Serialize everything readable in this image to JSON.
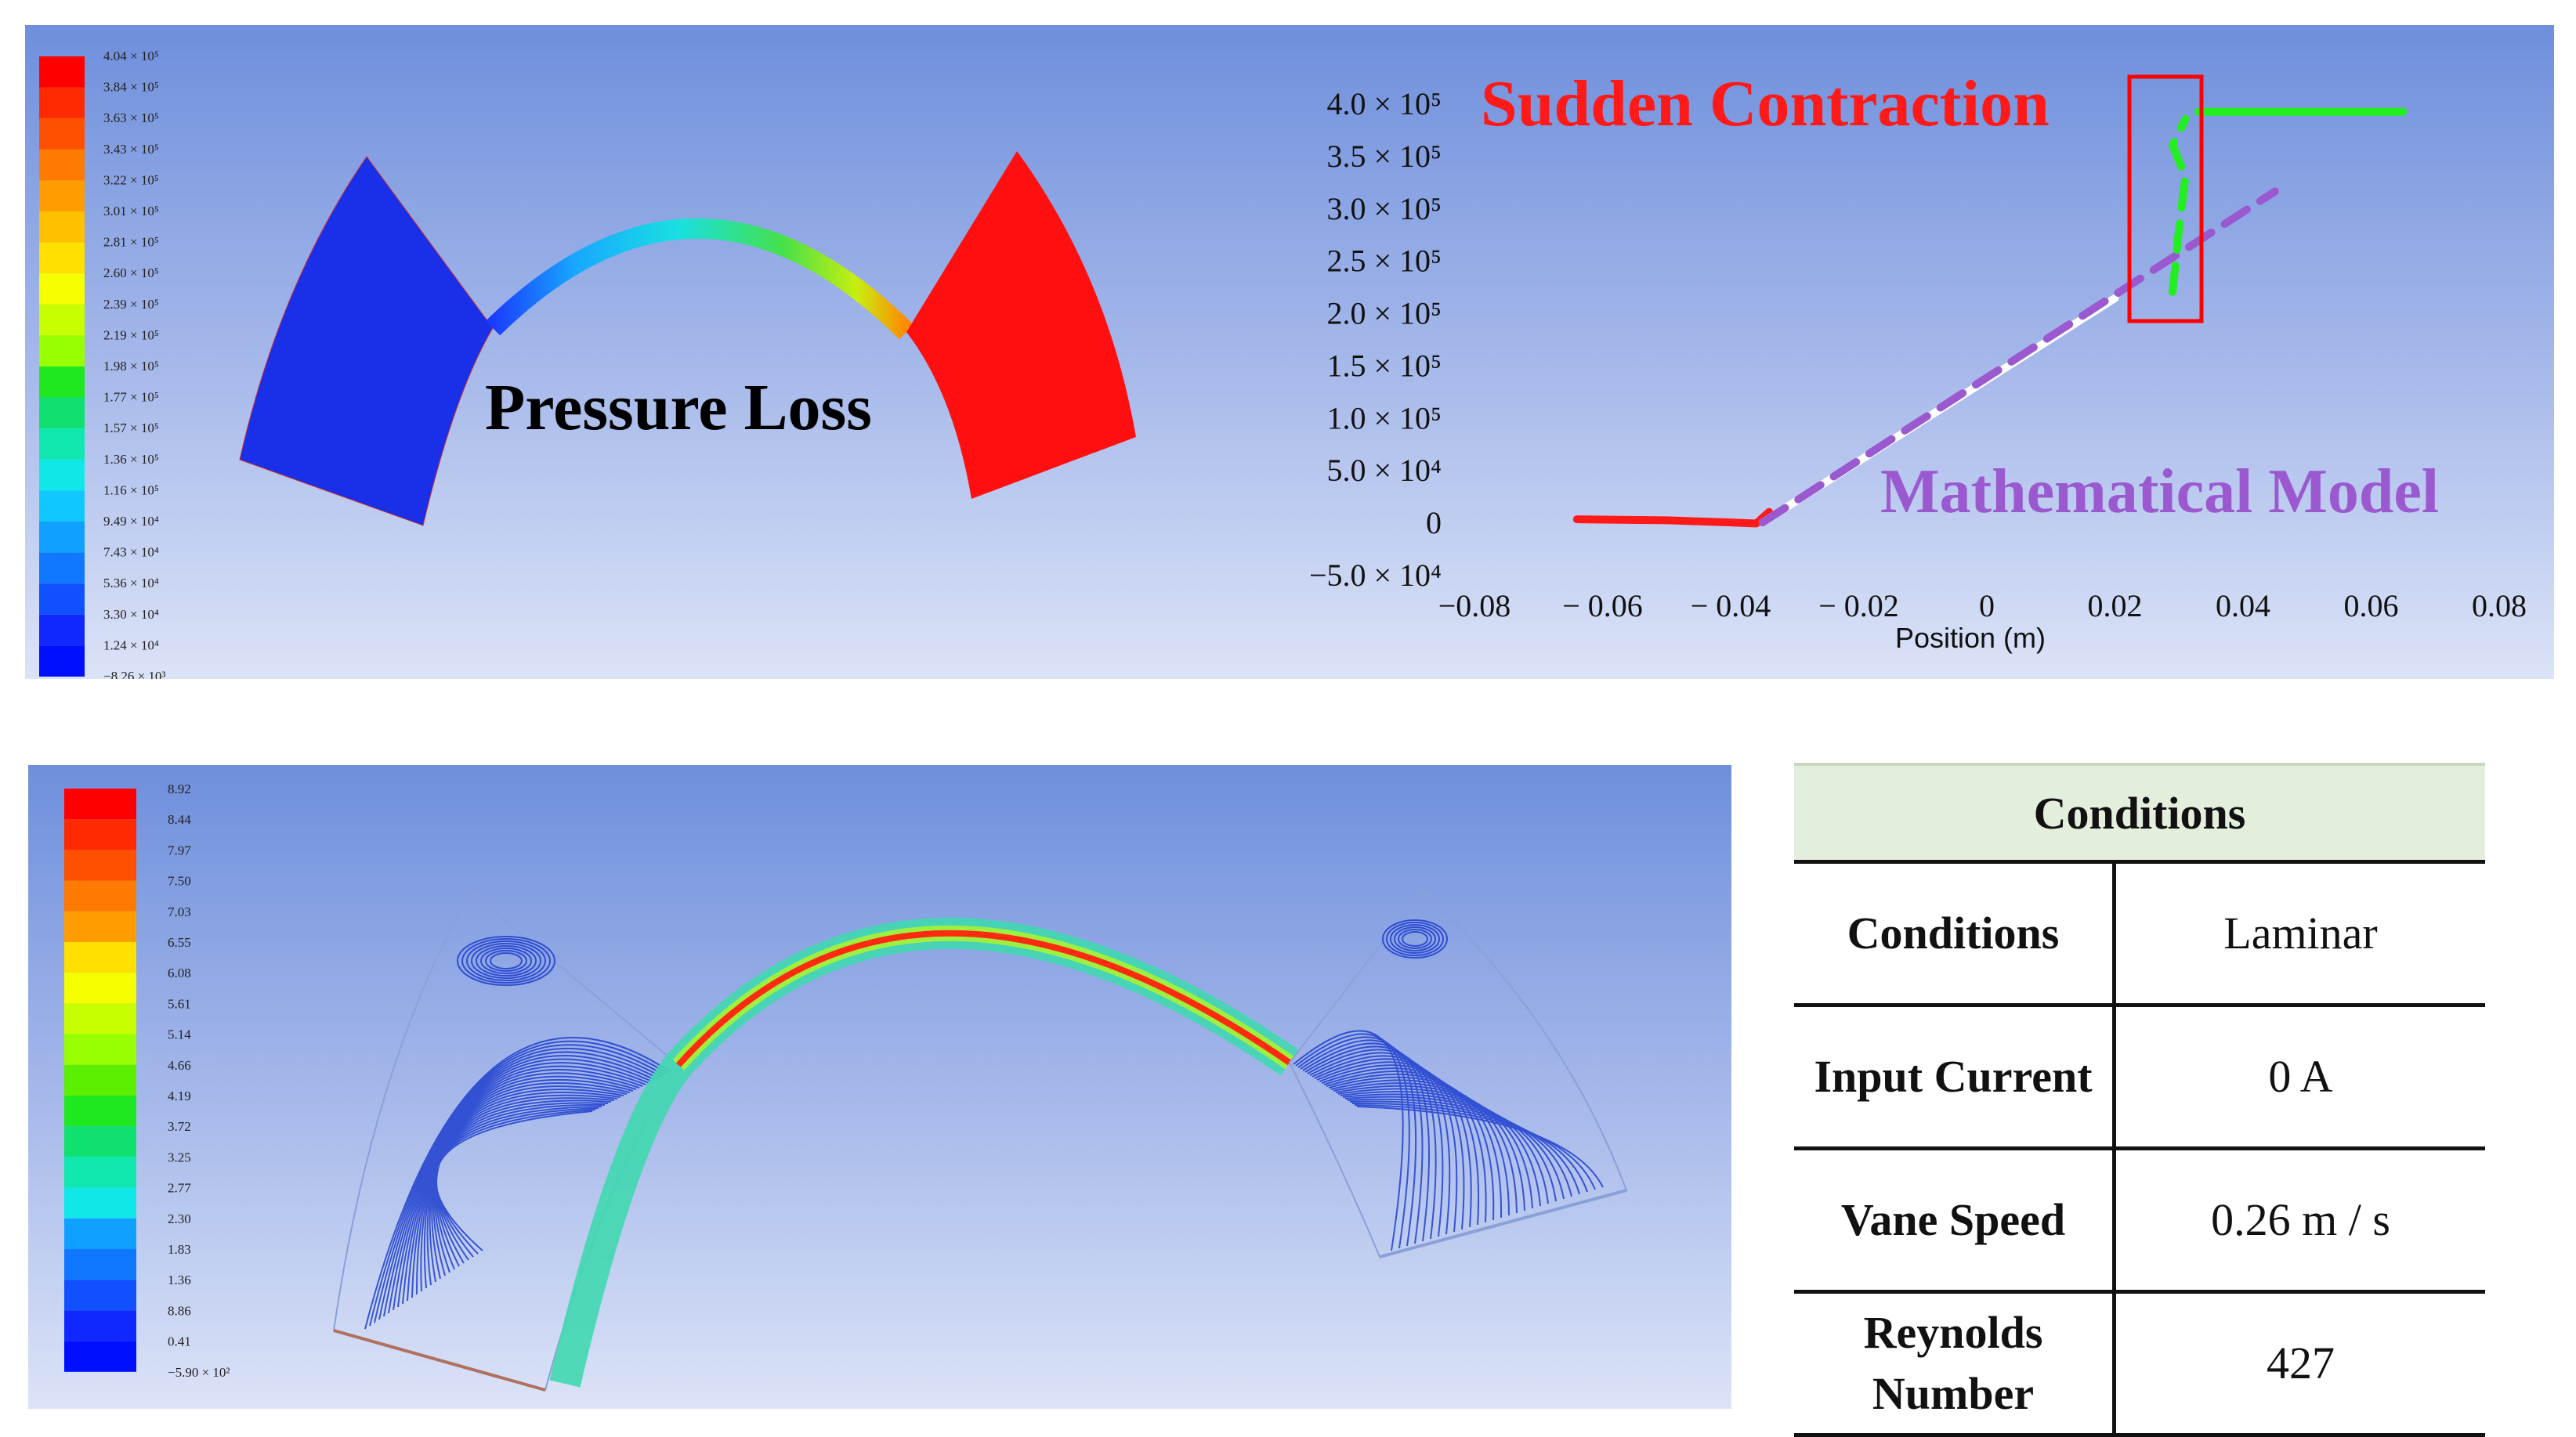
{
  "pressure_panel": {
    "label": "Pressure Loss",
    "legend": [
      "4.04 × 10⁵",
      "3.84 × 10⁵",
      "3.63 × 10⁵",
      "3.43 × 10⁵",
      "3.22 × 10⁵",
      "3.01 × 10⁵",
      "2.81 × 10⁵",
      "2.60 × 10⁵",
      "2.39 × 10⁵",
      "2.19 × 10⁵",
      "1.98 × 10⁵",
      "1.77 × 10⁵",
      "1.57 × 10⁵",
      "1.36 × 10⁵",
      "1.16 × 10⁵",
      "9.49 × 10⁴",
      "7.43 × 10⁴",
      "5.36 × 10⁴",
      "3.30 × 10⁴",
      "1.24 × 10⁴",
      "−8.26 × 10³"
    ]
  },
  "plot_panel": {
    "annotations": {
      "contraction": "Sudden Contraction",
      "model": "Mathematical Model"
    },
    "colors": {
      "simulation": "#ff1a1a",
      "contraction": "#22ee22",
      "model": "#9b59d0",
      "box": "#ff0000"
    }
  },
  "velocity_panel": {
    "legend": [
      "8.92",
      "8.44",
      "7.97",
      "7.50",
      "7.03",
      "6.55",
      "6.08",
      "5.61",
      "5.14",
      "4.66",
      "4.19",
      "3.72",
      "3.25",
      "2.77",
      "2.30",
      "1.83",
      "1.36",
      "8.86",
      "0.41",
      "−5.90 × 10²"
    ]
  },
  "conditions_table": {
    "title": "Conditions",
    "rows": [
      {
        "label": "Conditions",
        "value": "Laminar"
      },
      {
        "label": "Input Current",
        "value": "0 A"
      },
      {
        "label": "Vane Speed",
        "value": "0.26 m / s"
      },
      {
        "label": "Reynolds Number",
        "value": "427"
      }
    ]
  },
  "chart_data": {
    "type": "line",
    "title": "",
    "xlabel": "Position (m)",
    "ylabel": "",
    "xlim": [
      -0.08,
      0.08
    ],
    "ylim": [
      -50000,
      400000
    ],
    "x_ticks": [
      -0.08,
      -0.06,
      -0.04,
      -0.02,
      0,
      0.02,
      0.04,
      0.06,
      0.08
    ],
    "x_tick_labels": [
      "−0.08",
      "− 0.06",
      "− 0.04",
      "− 0.02",
      "0",
      "0.02",
      "0.04",
      "0.06",
      "0.08"
    ],
    "y_ticks": [
      400000,
      350000,
      300000,
      250000,
      200000,
      150000,
      100000,
      50000,
      0,
      -50000
    ],
    "y_tick_labels": [
      "4.0 × 10⁵",
      "3.5 × 10⁵",
      "3.0 × 10⁵",
      "2.5 × 10⁵",
      "2.0 × 10⁵",
      "1.5 × 10⁵",
      "1.0 × 10⁵",
      "5.0 × 10⁴",
      "0",
      "−5.0 × 10⁴"
    ],
    "grid": false,
    "series": [
      {
        "style": "solid",
        "color": "#ff1a1a",
        "x": [
          -0.064,
          -0.05,
          -0.04,
          -0.036,
          -0.034
        ],
        "y": [
          3000,
          2000,
          0,
          -1000,
          10000
        ]
      },
      {
        "style": "solid",
        "color": "#ffffff",
        "x": [
          -0.035,
          0.02
        ],
        "y": [
          0,
          214000
        ]
      },
      {
        "style": "dashed",
        "color": "#9b59d0",
        "x": [
          -0.035,
          0.045
        ],
        "y": [
          0,
          316000
        ]
      },
      {
        "style": "dashed",
        "color": "#22ee22",
        "x": [
          0.029,
          0.03,
          0.031,
          0.029,
          0.031
        ],
        "y": [
          220000,
          280000,
          330000,
          360000,
          385000
        ]
      },
      {
        "style": "solid",
        "color": "#22ee22",
        "x": [
          0.033,
          0.065
        ],
        "y": [
          392000,
          392000
        ]
      }
    ]
  }
}
